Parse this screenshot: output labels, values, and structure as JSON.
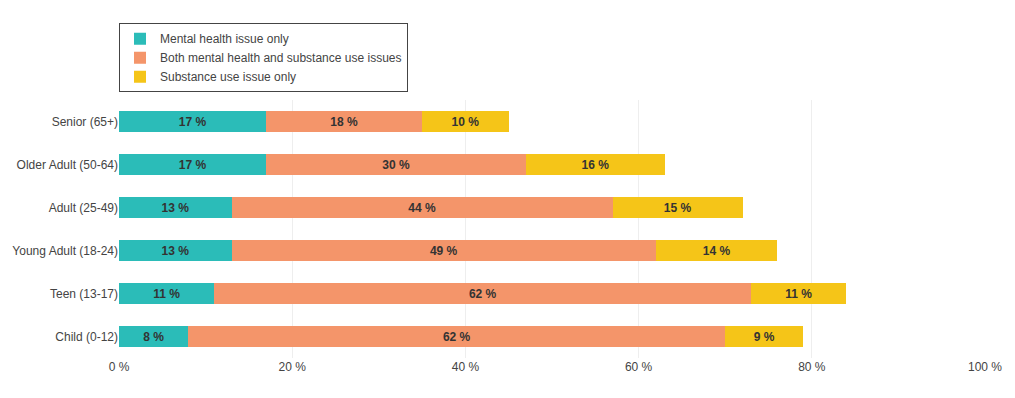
{
  "chart_data": {
    "type": "bar",
    "orientation": "horizontal",
    "stacked": true,
    "data_labels": true,
    "grid": true,
    "legend": "top left",
    "categories": [
      "Senior (65+)",
      "Older Adult (50-64)",
      "Adult (25-49)",
      "Young Adult (18-24)",
      "Teen (13-17)",
      "Child (0-12)"
    ],
    "series": [
      {
        "name": "Mental health issue only",
        "color": "#2BBCB8",
        "values": [
          17,
          17,
          13,
          13,
          11,
          8
        ],
        "value_labels": [
          "17 %",
          "17 %",
          "13 %",
          "13 %",
          "11 %",
          "8 %"
        ]
      },
      {
        "name": "Both mental health and substance use issues",
        "color": "#F4956A",
        "values": [
          18,
          30,
          44,
          49,
          62,
          62
        ],
        "value_labels": [
          "18 %",
          "30 %",
          "44 %",
          "49 %",
          "62 %",
          "62 %"
        ]
      },
      {
        "name": "Substance use issue only",
        "color": "#F5C518",
        "values": [
          10,
          16,
          15,
          14,
          11,
          9
        ],
        "value_labels": [
          "10 %",
          "16 %",
          "15 %",
          "14 %",
          "11 %",
          "9 %"
        ]
      }
    ],
    "xlim": [
      0,
      100
    ],
    "xticks": [
      {
        "value": 0,
        "label": "0 %"
      },
      {
        "value": 20,
        "label": "20 %"
      },
      {
        "value": 40,
        "label": "40 %"
      },
      {
        "value": 60,
        "label": "60 %"
      },
      {
        "value": 80,
        "label": "80 %"
      },
      {
        "value": 100,
        "label": "100 %"
      }
    ]
  }
}
